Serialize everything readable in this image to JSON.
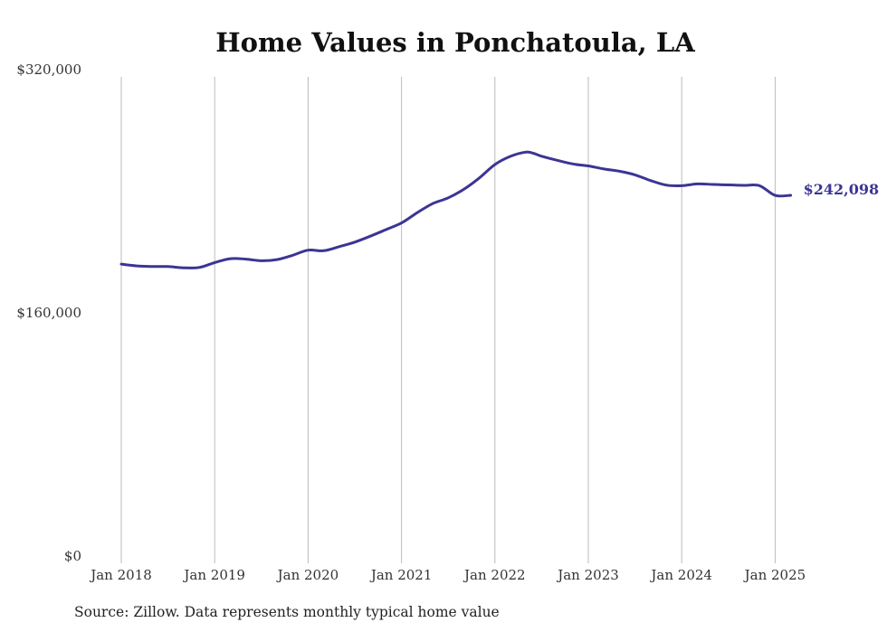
{
  "title": "Home Values in Ponchatoula, LA",
  "source": "Source: Zillow. Data represents monthly typical home value",
  "colors": {
    "line": "#3b3594",
    "grid": "#bbbbbb",
    "text": "#333333"
  },
  "chart_data": {
    "type": "line",
    "title": "Home Values in Ponchatoula, LA",
    "xlabel": "",
    "ylabel": "",
    "ylim": [
      0,
      320000
    ],
    "y_ticks": [
      0,
      160000,
      320000
    ],
    "y_tick_labels": [
      "$0",
      "$160,000",
      "$320,000"
    ],
    "x_ticks": [
      "2018-01",
      "2019-01",
      "2020-01",
      "2021-01",
      "2022-01",
      "2023-01",
      "2024-01",
      "2025-01"
    ],
    "x_tick_labels": [
      "Jan 2018",
      "Jan 2019",
      "Jan 2020",
      "Jan 2021",
      "Jan 2022",
      "Jan 2023",
      "Jan 2024",
      "Jan 2025"
    ],
    "grid": "vertical",
    "end_label": "$242,098",
    "series": [
      {
        "x": [
          "2018-01",
          "2018-03",
          "2018-05",
          "2018-07",
          "2018-09",
          "2018-11",
          "2019-01",
          "2019-03",
          "2019-05",
          "2019-07",
          "2019-09",
          "2019-11",
          "2020-01",
          "2020-03",
          "2020-05",
          "2020-07",
          "2020-09",
          "2020-11",
          "2021-01",
          "2021-03",
          "2021-05",
          "2021-07",
          "2021-09",
          "2021-11",
          "2022-01",
          "2022-03",
          "2022-05",
          "2022-06",
          "2022-07",
          "2022-09",
          "2022-11",
          "2023-01",
          "2023-03",
          "2023-05",
          "2023-07",
          "2023-09",
          "2023-11",
          "2024-01",
          "2024-03",
          "2024-05",
          "2024-07",
          "2024-09",
          "2024-11",
          "2025-01",
          "2025-03"
        ],
        "values": [
          196800,
          195600,
          195300,
          195200,
          194400,
          194600,
          197800,
          200400,
          200100,
          199000,
          199800,
          202600,
          206000,
          205600,
          208300,
          211300,
          215200,
          219500,
          223900,
          230600,
          236600,
          240400,
          246000,
          253500,
          262300,
          267700,
          270500,
          269600,
          267800,
          265100,
          262700,
          261400,
          259400,
          257900,
          255500,
          251800,
          248800,
          248400,
          249600,
          249200,
          248900,
          248600,
          248400,
          242000,
          242098
        ]
      }
    ]
  }
}
